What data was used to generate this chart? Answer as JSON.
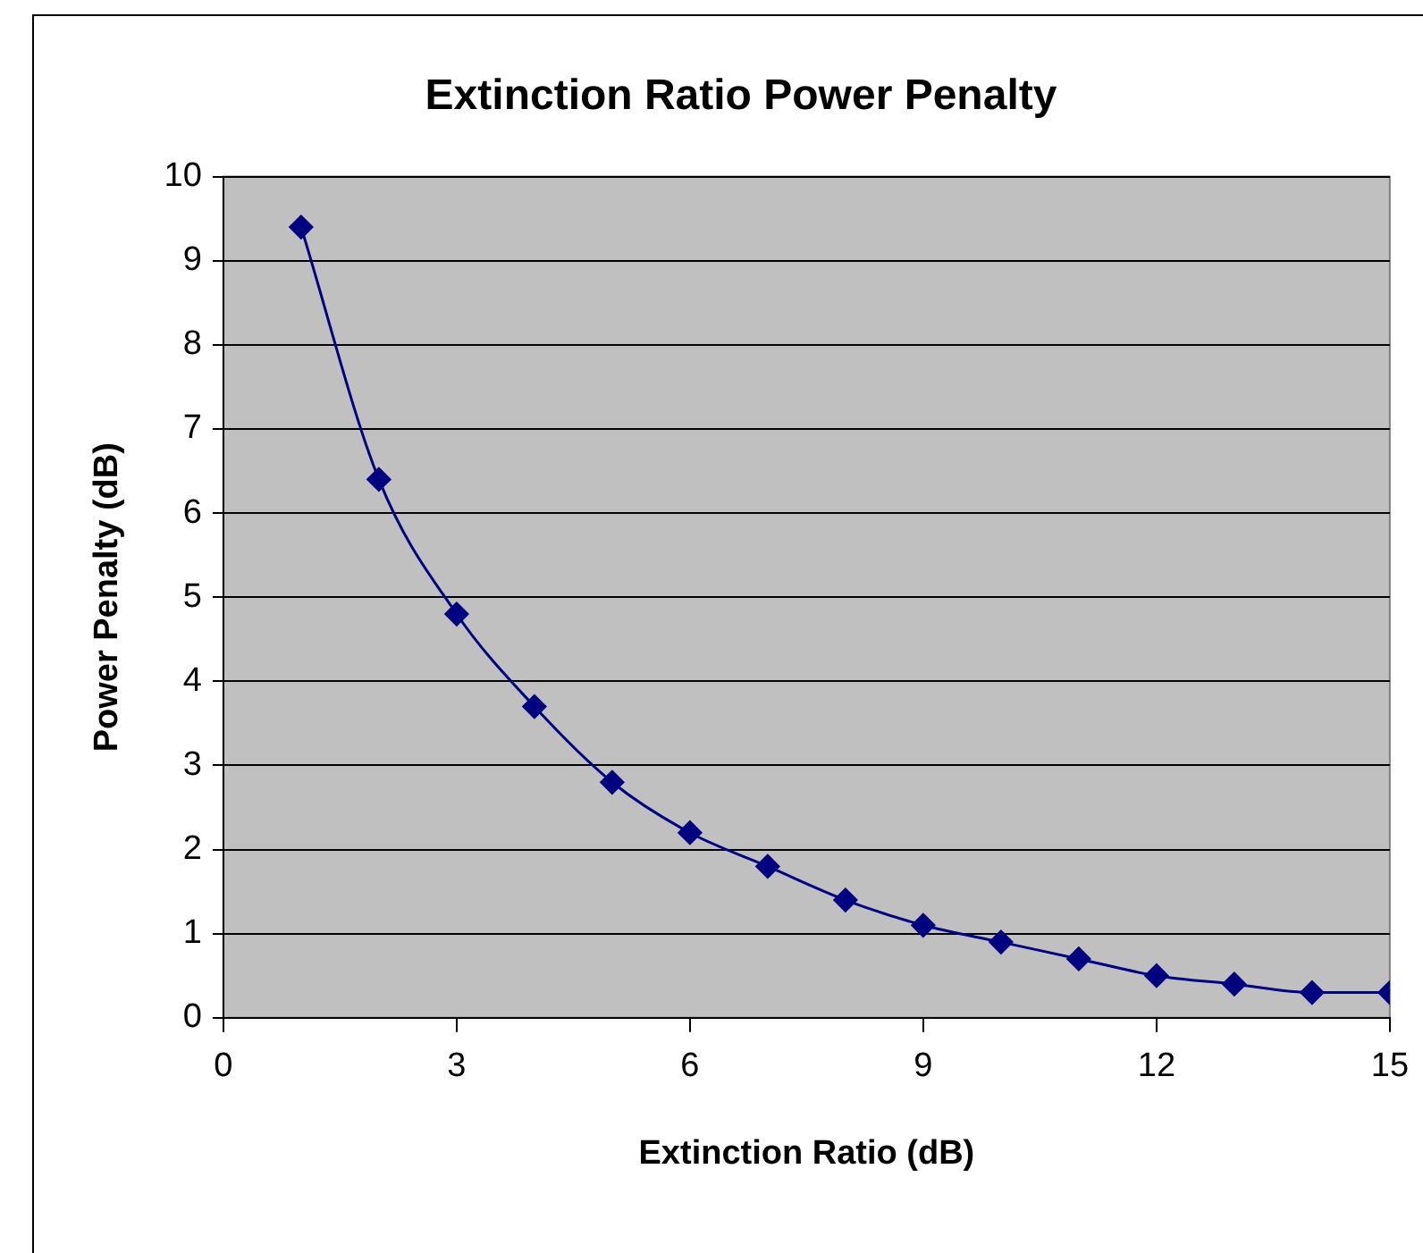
{
  "chart_data": {
    "type": "line",
    "title": "Extinction Ratio Power Penalty",
    "xlabel": "Extinction Ratio (dB)",
    "ylabel": "Power Penalty (dB)",
    "x": [
      1,
      2,
      3,
      4,
      5,
      6,
      7,
      8,
      9,
      10,
      11,
      12,
      13,
      14,
      15
    ],
    "series": [
      {
        "color": "#000080",
        "values": [
          9.4,
          6.4,
          4.8,
          3.7,
          2.8,
          2.2,
          1.8,
          1.4,
          1.1,
          0.9,
          0.7,
          0.5,
          0.4,
          0.3,
          0.3
        ]
      }
    ],
    "xlim": [
      0,
      15
    ],
    "xticks": [
      0,
      3,
      6,
      9,
      12,
      15
    ],
    "ylim": [
      0,
      10
    ],
    "yticks": [
      0,
      1,
      2,
      3,
      4,
      5,
      6,
      7,
      8,
      9,
      10
    ],
    "grid": "y",
    "legend": false,
    "marker": "diamond",
    "line_style": "solid"
  }
}
